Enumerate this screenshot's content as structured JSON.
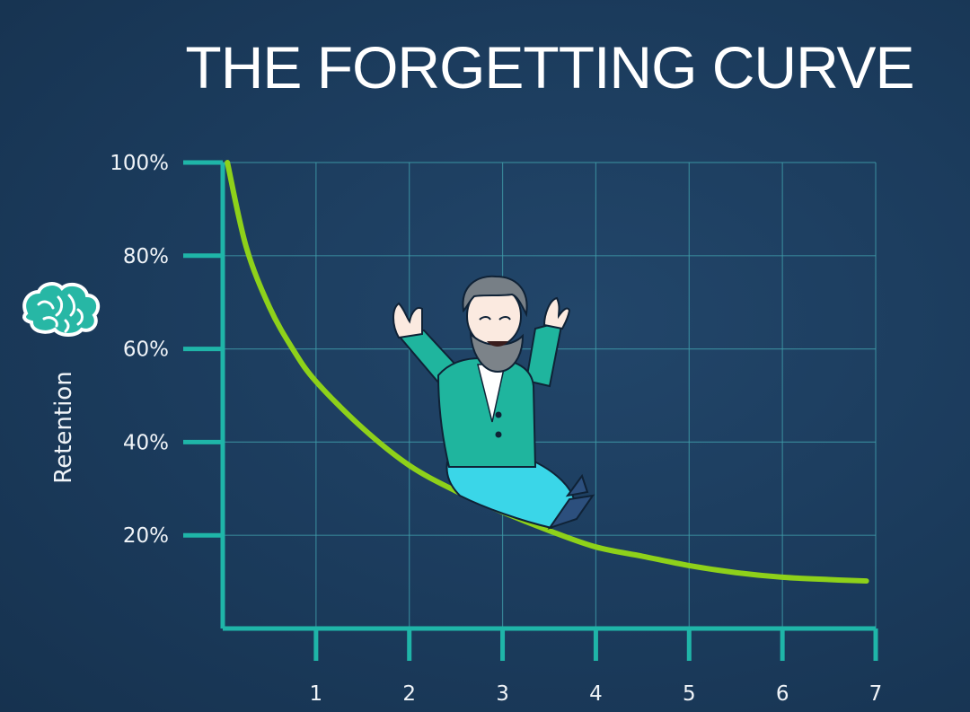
{
  "chart_data": {
    "type": "line",
    "title": "THE FORGETTING CURVE",
    "xlabel": "",
    "ylabel": "Retention",
    "xlim": [
      0,
      7
    ],
    "ylim": [
      0,
      100
    ],
    "x_ticks": [
      1,
      2,
      3,
      4,
      5,
      6,
      7
    ],
    "y_ticks": [
      20,
      40,
      60,
      80,
      100
    ],
    "y_tick_labels": [
      "20%",
      "40%",
      "60%",
      "80%",
      "100%"
    ],
    "grid": true,
    "series": [
      {
        "x": [
          0.05,
          0.25,
          0.5,
          0.75,
          1.0,
          1.5,
          2.0,
          2.5,
          3.0,
          3.5,
          4.0,
          4.5,
          5.0,
          5.5,
          6.0,
          6.5,
          6.9
        ],
        "y": [
          100,
          82,
          69,
          60,
          53,
          43,
          35,
          29.5,
          25,
          21,
          17.5,
          15.5,
          13.5,
          12,
          11,
          10.5,
          10.2
        ]
      }
    ]
  },
  "colors": {
    "axis": "#1fb5a8",
    "grid": "#3f9aa8",
    "curve": "#8ed11a",
    "coat": "#1fb59e",
    "pants": "#3ad6e8",
    "brain": "#27b7a5"
  },
  "icons": {
    "brain": "brain-icon",
    "character": "scientist-illustration"
  }
}
